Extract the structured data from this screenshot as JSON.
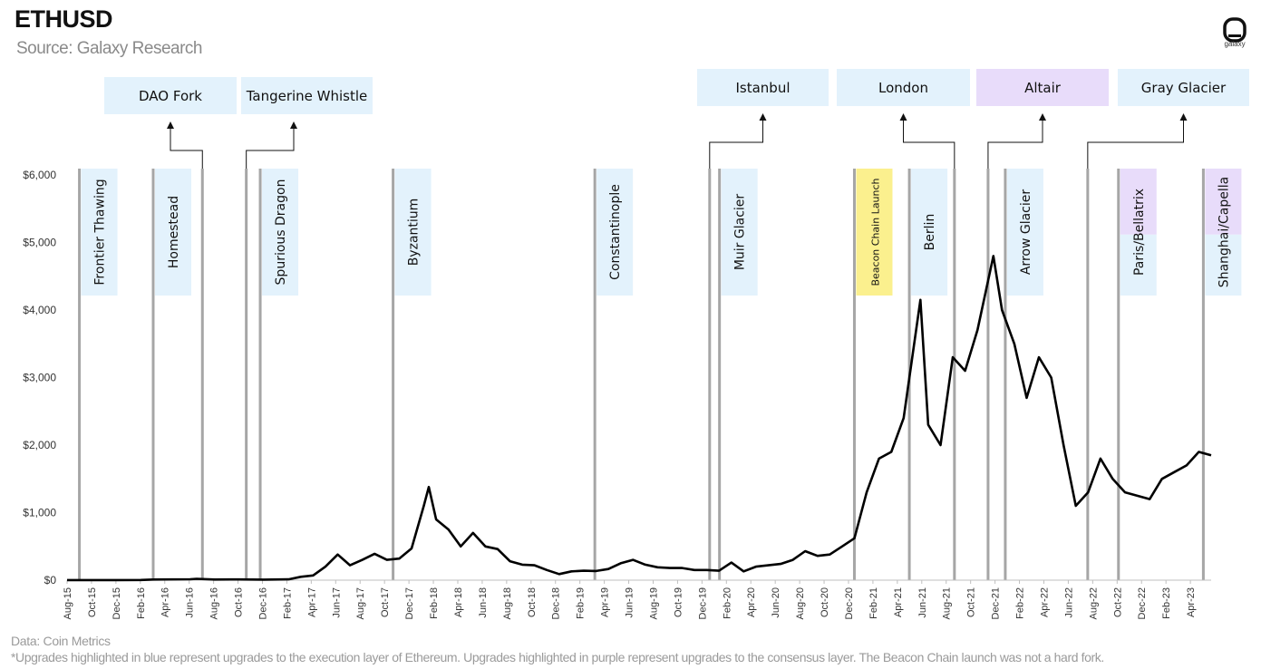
{
  "header": {
    "title": "ETHUSD",
    "subtitle": "Source: Galaxy Research",
    "logo_text": "galaxy"
  },
  "footer": {
    "source": "Data: Coin Metrics",
    "note": "*Upgrades highlighted in blue represent upgrades to the execution layer of Ethereum. Upgrades highlighted in purple represent upgrades to the consensus layer. The Beacon Chain launch was not a hard fork."
  },
  "colors": {
    "execution": "#e3f2fc",
    "consensus": "#e8dcfa",
    "beacon": "#fbf08e",
    "line": "#000000",
    "marker": "#a6a6a6",
    "axis_text": "#333333"
  },
  "chart_data": {
    "type": "line",
    "title": "ETHUSD",
    "subtitle": "Source: Galaxy Research",
    "xlabel": "",
    "ylabel": "",
    "ylim": [
      0,
      6000
    ],
    "yticks": [
      0,
      1000,
      2000,
      3000,
      4000,
      5000,
      6000
    ],
    "ytick_labels": [
      "$0",
      "$1,000",
      "$2,000",
      "$3,000",
      "$4,000",
      "$5,000",
      "$6,000"
    ],
    "xlim": [
      "2015-08",
      "2023-05"
    ],
    "xtick_labels": [
      "Aug-15",
      "Oct-15",
      "Dec-15",
      "Feb-16",
      "Apr-16",
      "Jun-16",
      "Aug-16",
      "Oct-16",
      "Dec-16",
      "Feb-17",
      "Apr-17",
      "Jun-17",
      "Aug-17",
      "Oct-17",
      "Dec-17",
      "Feb-18",
      "Apr-18",
      "Jun-18",
      "Aug-18",
      "Oct-18",
      "Dec-18",
      "Feb-19",
      "Apr-19",
      "Jun-19",
      "Aug-19",
      "Oct-19",
      "Dec-19",
      "Feb-20",
      "Apr-20",
      "Jun-20",
      "Aug-20",
      "Oct-20",
      "Dec-20",
      "Feb-21",
      "Apr-21",
      "Jun-21",
      "Aug-21",
      "Oct-21",
      "Dec-21",
      "Feb-22",
      "Apr-22",
      "Jun-22",
      "Aug-22",
      "Oct-22",
      "Dec-22",
      "Feb-23",
      "Apr-23"
    ],
    "grid": false,
    "series": [
      {
        "x": [
          "2015-08",
          "2015-10",
          "2015-12",
          "2016-02",
          "2016-03",
          "2016-06",
          "2016-06-17",
          "2016-08",
          "2016-10",
          "2016-12",
          "2017-02",
          "2017-03",
          "2017-04",
          "2017-05",
          "2017-06",
          "2017-07",
          "2017-08",
          "2017-09",
          "2017-10",
          "2017-11",
          "2017-12",
          "2018-01",
          "2018-01-13",
          "2018-02",
          "2018-03",
          "2018-04",
          "2018-05",
          "2018-06",
          "2018-07",
          "2018-08",
          "2018-09",
          "2018-10",
          "2018-11",
          "2018-12",
          "2019-01",
          "2019-02",
          "2019-03",
          "2019-04",
          "2019-05",
          "2019-06",
          "2019-07",
          "2019-08",
          "2019-09",
          "2019-10",
          "2019-11",
          "2019-12",
          "2020-01",
          "2020-02",
          "2020-03",
          "2020-04",
          "2020-05",
          "2020-06",
          "2020-07",
          "2020-08",
          "2020-09",
          "2020-10",
          "2020-11",
          "2020-12",
          "2021-01",
          "2021-02",
          "2021-03",
          "2021-04",
          "2021-05-12",
          "2021-06",
          "2021-07",
          "2021-08",
          "2021-09",
          "2021-10",
          "2021-11-10",
          "2021-12",
          "2022-01",
          "2022-02",
          "2022-03",
          "2022-04",
          "2022-05",
          "2022-06",
          "2022-07",
          "2022-08",
          "2022-09",
          "2022-10",
          "2022-11",
          "2022-12",
          "2023-01",
          "2023-02",
          "2023-03",
          "2023-04",
          "2023-05"
        ],
        "y": [
          1,
          1,
          1,
          3,
          10,
          14,
          20,
          10,
          11,
          8,
          12,
          50,
          70,
          200,
          380,
          220,
          300,
          390,
          300,
          320,
          470,
          1100,
          1380,
          900,
          750,
          500,
          700,
          500,
          460,
          280,
          230,
          220,
          150,
          90,
          130,
          140,
          135,
          165,
          250,
          300,
          230,
          190,
          180,
          180,
          150,
          150,
          140,
          260,
          130,
          200,
          220,
          240,
          300,
          430,
          360,
          380,
          500,
          620,
          1300,
          1800,
          1900,
          2400,
          4150,
          2300,
          2000,
          3300,
          3100,
          3700,
          4800,
          4000,
          3500,
          2700,
          3300,
          3000,
          2000,
          1100,
          1300,
          1800,
          1500,
          1300,
          1250,
          1200,
          1500,
          1600,
          1700,
          1900,
          1850
        ]
      }
    ],
    "upgrades": [
      {
        "name": "Frontier Thawing",
        "date": "2015-09",
        "layer": "execution"
      },
      {
        "name": "Homestead",
        "date": "2016-03",
        "layer": "execution"
      },
      {
        "name": "DAO Fork",
        "date": "2016-07",
        "layer": "execution"
      },
      {
        "name": "Tangerine Whistle",
        "date": "2016-10-18",
        "layer": "execution"
      },
      {
        "name": "Spurious Dragon",
        "date": "2016-11-22",
        "layer": "execution"
      },
      {
        "name": "Byzantium",
        "date": "2017-10-16",
        "layer": "execution"
      },
      {
        "name": "Constantinople",
        "date": "2019-02-28",
        "layer": "execution"
      },
      {
        "name": "Istanbul",
        "date": "2019-12-08",
        "layer": "execution"
      },
      {
        "name": "Muir Glacier",
        "date": "2020-01-02",
        "layer": "execution"
      },
      {
        "name": "Beacon Chain Launch",
        "date": "2020-12-01",
        "layer": "beacon"
      },
      {
        "name": "Berlin",
        "date": "2021-04-15",
        "layer": "execution"
      },
      {
        "name": "London",
        "date": "2021-08-05",
        "layer": "execution"
      },
      {
        "name": "Altair",
        "date": "2021-10-27",
        "layer": "consensus"
      },
      {
        "name": "Arrow Glacier",
        "date": "2021-12-09",
        "layer": "execution"
      },
      {
        "name": "Gray Glacier",
        "date": "2022-06-30",
        "layer": "execution"
      },
      {
        "name": "Paris/Bellatrix",
        "date": "2022-09-15",
        "layer": "consensus"
      },
      {
        "name": "Shanghai/Capella",
        "date": "2023-04-12",
        "layer": "consensus"
      }
    ]
  }
}
